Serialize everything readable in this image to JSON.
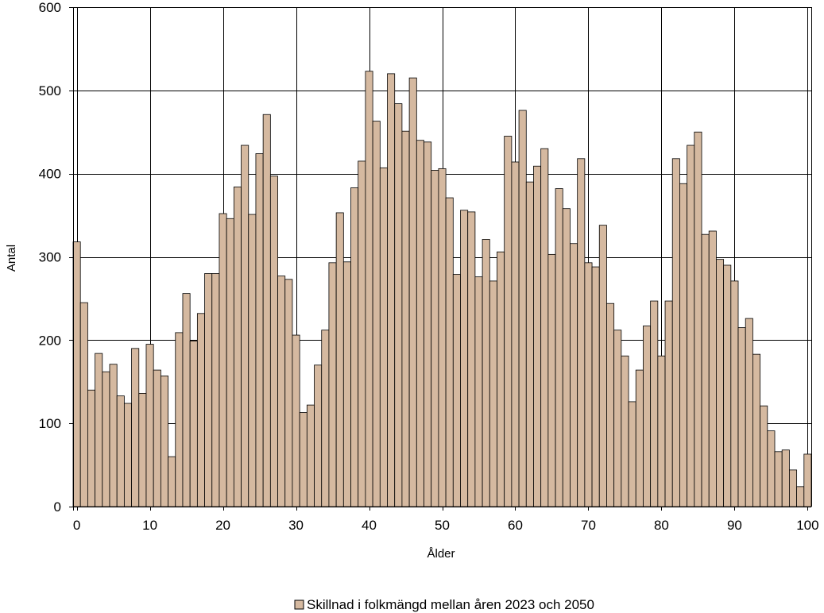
{
  "chart_data": {
    "type": "bar",
    "xlabel": "Ålder",
    "ylabel": "Antal",
    "ylim": [
      0,
      600
    ],
    "yticks": [
      "0",
      "100",
      "200",
      "300",
      "400",
      "500",
      "600"
    ],
    "xticks": [
      "0",
      "10",
      "20",
      "30",
      "40",
      "50",
      "60",
      "70",
      "80",
      "90",
      "100"
    ],
    "grid": true,
    "legend_position": "bottom",
    "colors": {
      "bar_fill": "#d5b9a0",
      "bar_stroke": "#000000",
      "grid": "#000000"
    },
    "series": [
      {
        "name": "Skillnad i folkmängd mellan åren 2023 och 2050",
        "x": [
          0,
          1,
          2,
          3,
          4,
          5,
          6,
          7,
          8,
          9,
          10,
          11,
          12,
          13,
          14,
          15,
          16,
          17,
          18,
          19,
          20,
          21,
          22,
          23,
          24,
          25,
          26,
          27,
          28,
          29,
          30,
          31,
          32,
          33,
          34,
          35,
          36,
          37,
          38,
          39,
          40,
          41,
          42,
          43,
          44,
          45,
          46,
          47,
          48,
          49,
          50,
          51,
          52,
          53,
          54,
          55,
          56,
          57,
          58,
          59,
          60,
          61,
          62,
          63,
          64,
          65,
          66,
          67,
          68,
          69,
          70,
          71,
          72,
          73,
          74,
          75,
          76,
          77,
          78,
          79,
          80,
          81,
          82,
          83,
          84,
          85,
          86,
          87,
          88,
          89,
          90,
          91,
          92,
          93,
          94,
          95,
          96,
          97,
          98,
          99,
          100
        ],
        "values": [
          318,
          245,
          140,
          184,
          162,
          171,
          133,
          124,
          190,
          136,
          195,
          164,
          157,
          60,
          209,
          256,
          199,
          232,
          280,
          280,
          352,
          346,
          384,
          434,
          351,
          424,
          471,
          397,
          277,
          273,
          206,
          113,
          122,
          170,
          212,
          293,
          353,
          294,
          383,
          415,
          523,
          463,
          407,
          520,
          484,
          451,
          515,
          440,
          438,
          404,
          406,
          371,
          279,
          356,
          354,
          276,
          321,
          271,
          306,
          445,
          414,
          476,
          390,
          409,
          430,
          303,
          382,
          358,
          316,
          418,
          293,
          288,
          338,
          244,
          212,
          181,
          126,
          164,
          217,
          247,
          181,
          247,
          418,
          388,
          434,
          450,
          327,
          331,
          297,
          290,
          271,
          215,
          226,
          183,
          121,
          91,
          66,
          68,
          44,
          24,
          63
        ]
      }
    ]
  }
}
